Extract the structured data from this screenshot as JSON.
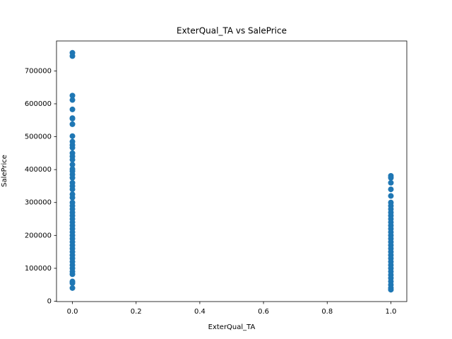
{
  "chart_data": {
    "type": "scatter",
    "title": "ExterQual_TA vs SalePrice",
    "x_label": "ExterQual_TA",
    "y_label": "SalePrice",
    "color": "#1f77b4",
    "x": [
      0,
      0,
      0,
      0,
      0,
      0,
      0,
      0,
      0,
      0,
      0,
      0,
      0,
      0,
      0,
      0,
      0,
      0,
      0,
      0,
      0,
      0,
      0,
      0,
      0,
      0,
      0,
      0,
      0,
      0,
      0,
      0,
      0,
      0,
      0,
      0,
      0,
      0,
      0,
      0,
      0,
      0,
      0,
      0,
      0,
      0,
      0,
      0,
      0,
      0,
      0,
      1,
      1,
      1,
      1,
      1,
      1,
      1,
      1,
      1,
      1,
      1,
      1,
      1,
      1,
      1,
      1,
      1,
      1,
      1,
      1,
      1,
      1,
      1,
      1,
      1,
      1,
      1,
      1,
      1,
      1,
      1,
      1,
      1
    ],
    "values": [
      755000,
      745000,
      625000,
      611657,
      582933,
      556581,
      555000,
      538000,
      501837,
      485000,
      475000,
      466500,
      450000,
      440000,
      430000,
      415298,
      402000,
      395000,
      385000,
      375000,
      360000,
      350000,
      340000,
      325000,
      315000,
      300000,
      290000,
      280000,
      270000,
      260000,
      250000,
      240000,
      230000,
      220000,
      210000,
      200000,
      190000,
      180000,
      170000,
      160000,
      150000,
      140000,
      130000,
      120000,
      110000,
      100000,
      90000,
      82000,
      60000,
      55000,
      40000,
      381000,
      375000,
      360000,
      340000,
      320000,
      300000,
      290000,
      280000,
      270000,
      260000,
      250000,
      240000,
      230000,
      220000,
      210000,
      200000,
      190000,
      180000,
      170000,
      160000,
      150000,
      140000,
      130000,
      120000,
      110000,
      100000,
      90000,
      80000,
      70000,
      60000,
      50000,
      40000,
      34900
    ],
    "xlim": [
      -0.05,
      1.05
    ],
    "ylim": [
      -1100,
      791000
    ],
    "xticks": [
      {
        "value": 0,
        "label": "0.0"
      },
      0.2,
      0.4,
      0.6,
      0.8,
      {
        "value": 1,
        "label": "1.0"
      }
    ],
    "yticks": [
      0,
      100000,
      200000,
      300000,
      400000,
      500000,
      600000,
      700000
    ]
  }
}
